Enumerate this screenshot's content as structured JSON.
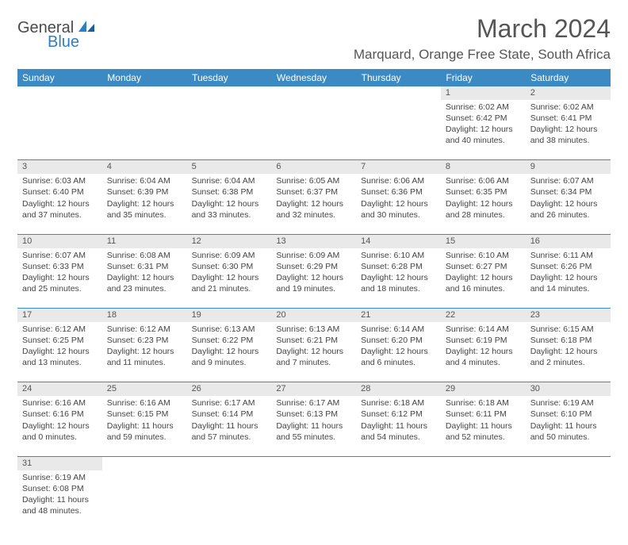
{
  "logo": {
    "part1": "General",
    "part2": "Blue"
  },
  "title": "March 2024",
  "location": "Marquard, Orange Free State, South Africa",
  "header_bg": "#3b8ac4",
  "header_text": "#ffffff",
  "daynum_bg": "#e9e9e9",
  "border_color": "#3b8ac4",
  "text_color": "#444444",
  "title_color": "#555555",
  "font_family": "Arial",
  "title_fontsize": 32,
  "location_fontsize": 17,
  "header_fontsize": 12,
  "cell_fontsize": 10.5,
  "days_of_week": [
    "Sunday",
    "Monday",
    "Tuesday",
    "Wednesday",
    "Thursday",
    "Friday",
    "Saturday"
  ],
  "weeks": [
    {
      "nums": [
        "",
        "",
        "",
        "",
        "",
        "1",
        "2"
      ],
      "cells": [
        null,
        null,
        null,
        null,
        null,
        {
          "sunrise": "Sunrise: 6:02 AM",
          "sunset": "Sunset: 6:42 PM",
          "daylight": "Daylight: 12 hours and 40 minutes."
        },
        {
          "sunrise": "Sunrise: 6:02 AM",
          "sunset": "Sunset: 6:41 PM",
          "daylight": "Daylight: 12 hours and 38 minutes."
        }
      ]
    },
    {
      "nums": [
        "3",
        "4",
        "5",
        "6",
        "7",
        "8",
        "9"
      ],
      "cells": [
        {
          "sunrise": "Sunrise: 6:03 AM",
          "sunset": "Sunset: 6:40 PM",
          "daylight": "Daylight: 12 hours and 37 minutes."
        },
        {
          "sunrise": "Sunrise: 6:04 AM",
          "sunset": "Sunset: 6:39 PM",
          "daylight": "Daylight: 12 hours and 35 minutes."
        },
        {
          "sunrise": "Sunrise: 6:04 AM",
          "sunset": "Sunset: 6:38 PM",
          "daylight": "Daylight: 12 hours and 33 minutes."
        },
        {
          "sunrise": "Sunrise: 6:05 AM",
          "sunset": "Sunset: 6:37 PM",
          "daylight": "Daylight: 12 hours and 32 minutes."
        },
        {
          "sunrise": "Sunrise: 6:06 AM",
          "sunset": "Sunset: 6:36 PM",
          "daylight": "Daylight: 12 hours and 30 minutes."
        },
        {
          "sunrise": "Sunrise: 6:06 AM",
          "sunset": "Sunset: 6:35 PM",
          "daylight": "Daylight: 12 hours and 28 minutes."
        },
        {
          "sunrise": "Sunrise: 6:07 AM",
          "sunset": "Sunset: 6:34 PM",
          "daylight": "Daylight: 12 hours and 26 minutes."
        }
      ]
    },
    {
      "nums": [
        "10",
        "11",
        "12",
        "13",
        "14",
        "15",
        "16"
      ],
      "cells": [
        {
          "sunrise": "Sunrise: 6:07 AM",
          "sunset": "Sunset: 6:33 PM",
          "daylight": "Daylight: 12 hours and 25 minutes."
        },
        {
          "sunrise": "Sunrise: 6:08 AM",
          "sunset": "Sunset: 6:31 PM",
          "daylight": "Daylight: 12 hours and 23 minutes."
        },
        {
          "sunrise": "Sunrise: 6:09 AM",
          "sunset": "Sunset: 6:30 PM",
          "daylight": "Daylight: 12 hours and 21 minutes."
        },
        {
          "sunrise": "Sunrise: 6:09 AM",
          "sunset": "Sunset: 6:29 PM",
          "daylight": "Daylight: 12 hours and 19 minutes."
        },
        {
          "sunrise": "Sunrise: 6:10 AM",
          "sunset": "Sunset: 6:28 PM",
          "daylight": "Daylight: 12 hours and 18 minutes."
        },
        {
          "sunrise": "Sunrise: 6:10 AM",
          "sunset": "Sunset: 6:27 PM",
          "daylight": "Daylight: 12 hours and 16 minutes."
        },
        {
          "sunrise": "Sunrise: 6:11 AM",
          "sunset": "Sunset: 6:26 PM",
          "daylight": "Daylight: 12 hours and 14 minutes."
        }
      ]
    },
    {
      "nums": [
        "17",
        "18",
        "19",
        "20",
        "21",
        "22",
        "23"
      ],
      "cells": [
        {
          "sunrise": "Sunrise: 6:12 AM",
          "sunset": "Sunset: 6:25 PM",
          "daylight": "Daylight: 12 hours and 13 minutes."
        },
        {
          "sunrise": "Sunrise: 6:12 AM",
          "sunset": "Sunset: 6:23 PM",
          "daylight": "Daylight: 12 hours and 11 minutes."
        },
        {
          "sunrise": "Sunrise: 6:13 AM",
          "sunset": "Sunset: 6:22 PM",
          "daylight": "Daylight: 12 hours and 9 minutes."
        },
        {
          "sunrise": "Sunrise: 6:13 AM",
          "sunset": "Sunset: 6:21 PM",
          "daylight": "Daylight: 12 hours and 7 minutes."
        },
        {
          "sunrise": "Sunrise: 6:14 AM",
          "sunset": "Sunset: 6:20 PM",
          "daylight": "Daylight: 12 hours and 6 minutes."
        },
        {
          "sunrise": "Sunrise: 6:14 AM",
          "sunset": "Sunset: 6:19 PM",
          "daylight": "Daylight: 12 hours and 4 minutes."
        },
        {
          "sunrise": "Sunrise: 6:15 AM",
          "sunset": "Sunset: 6:18 PM",
          "daylight": "Daylight: 12 hours and 2 minutes."
        }
      ]
    },
    {
      "nums": [
        "24",
        "25",
        "26",
        "27",
        "28",
        "29",
        "30"
      ],
      "cells": [
        {
          "sunrise": "Sunrise: 6:16 AM",
          "sunset": "Sunset: 6:16 PM",
          "daylight": "Daylight: 12 hours and 0 minutes."
        },
        {
          "sunrise": "Sunrise: 6:16 AM",
          "sunset": "Sunset: 6:15 PM",
          "daylight": "Daylight: 11 hours and 59 minutes."
        },
        {
          "sunrise": "Sunrise: 6:17 AM",
          "sunset": "Sunset: 6:14 PM",
          "daylight": "Daylight: 11 hours and 57 minutes."
        },
        {
          "sunrise": "Sunrise: 6:17 AM",
          "sunset": "Sunset: 6:13 PM",
          "daylight": "Daylight: 11 hours and 55 minutes."
        },
        {
          "sunrise": "Sunrise: 6:18 AM",
          "sunset": "Sunset: 6:12 PM",
          "daylight": "Daylight: 11 hours and 54 minutes."
        },
        {
          "sunrise": "Sunrise: 6:18 AM",
          "sunset": "Sunset: 6:11 PM",
          "daylight": "Daylight: 11 hours and 52 minutes."
        },
        {
          "sunrise": "Sunrise: 6:19 AM",
          "sunset": "Sunset: 6:10 PM",
          "daylight": "Daylight: 11 hours and 50 minutes."
        }
      ]
    },
    {
      "nums": [
        "31",
        "",
        "",
        "",
        "",
        "",
        ""
      ],
      "cells": [
        {
          "sunrise": "Sunrise: 6:19 AM",
          "sunset": "Sunset: 6:08 PM",
          "daylight": "Daylight: 11 hours and 48 minutes."
        },
        null,
        null,
        null,
        null,
        null,
        null
      ]
    }
  ]
}
